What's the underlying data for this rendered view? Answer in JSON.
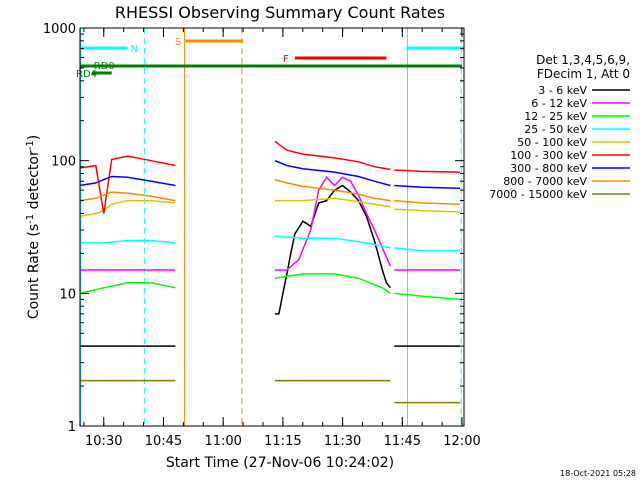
{
  "chart_data": {
    "type": "line",
    "title": "RHESSI Observing Summary Count Rates",
    "xlabel": "Start Time (27-Nov-06 10:24:02)",
    "ylabel_main": "Count Rate (s",
    "ylabel_sup1": "-1",
    "ylabel_mid": " detector",
    "ylabel_sup2": "-1",
    "ylabel_end": ")",
    "x_range_min": [
      24.03,
      120.5
    ],
    "y_scale": "log",
    "ylim": [
      1,
      1000
    ],
    "x_ticks": [
      {
        "min": 30,
        "label": "10:30"
      },
      {
        "min": 45,
        "label": "10:45"
      },
      {
        "min": 60,
        "label": "11:00"
      },
      {
        "min": 75,
        "label": "11:15"
      },
      {
        "min": 90,
        "label": "11:30"
      },
      {
        "min": 105,
        "label": "11:45"
      },
      {
        "min": 120,
        "label": "12:00"
      }
    ],
    "y_ticks": [
      {
        "value": 1,
        "label": "1"
      },
      {
        "value": 10,
        "label": "10"
      },
      {
        "value": 100,
        "label": "100"
      },
      {
        "value": 1000,
        "label": "1000"
      }
    ],
    "legend_title_lines": [
      "Det 1,3,4,5,6,9,",
      "FDecim 1, Att 0"
    ],
    "series": [
      {
        "name": "3 - 6 keV",
        "color": "#000000",
        "segments": [
          {
            "t": [
              24,
              30,
              36,
              42,
              48
            ],
            "v": [
              4,
              4,
              4,
              4,
              4
            ]
          },
          {
            "t": [
              73,
              74,
              75,
              76,
              77,
              78,
              80,
              82,
              84,
              86,
              88,
              90,
              92,
              94,
              96,
              98,
              100,
              101,
              102
            ],
            "v": [
              7,
              7,
              10,
              14,
              20,
              28,
              35,
              32,
              48,
              50,
              60,
              65,
              58,
              50,
              38,
              25,
              15,
              12,
              11
            ]
          },
          {
            "t": [
              103,
              108,
              114,
              119.5
            ],
            "v": [
              4,
              4,
              4,
              4
            ]
          }
        ]
      },
      {
        "name": "6 - 12 keV",
        "color": "#ff00ff",
        "segments": [
          {
            "t": [
              24,
              30,
              36,
              42,
              48
            ],
            "v": [
              15,
              15,
              15,
              15,
              15
            ]
          },
          {
            "t": [
              73,
              76,
              79,
              82,
              84,
              86,
              88,
              90,
              92,
              94,
              96,
              98,
              100,
              102
            ],
            "v": [
              15,
              15,
              18,
              30,
              60,
              75,
              65,
              75,
              70,
              55,
              40,
              30,
              22,
              16
            ]
          },
          {
            "t": [
              103,
              108,
              114,
              119.5
            ],
            "v": [
              15,
              15,
              15,
              15
            ]
          }
        ]
      },
      {
        "name": "12 - 25 keV",
        "color": "#00ff00",
        "segments": [
          {
            "t": [
              24,
              30,
              36,
              42,
              48
            ],
            "v": [
              10,
              11,
              12,
              12,
              11
            ]
          },
          {
            "t": [
              73,
              80,
              88,
              94,
              100,
              102
            ],
            "v": [
              13,
              14,
              14,
              13,
              11,
              10
            ]
          },
          {
            "t": [
              103,
              110,
              119.5
            ],
            "v": [
              10,
              9.5,
              9
            ]
          }
        ]
      },
      {
        "name": "25 - 50 keV",
        "color": "#00ffff",
        "segments": [
          {
            "t": [
              24,
              30,
              36,
              42,
              48
            ],
            "v": [
              24,
              24,
              25,
              25,
              24
            ]
          },
          {
            "t": [
              73,
              80,
              88,
              96,
              102
            ],
            "v": [
              27,
              26,
              26,
              24,
              22
            ]
          },
          {
            "t": [
              103,
              110,
              119.5
            ],
            "v": [
              22,
              21,
              21
            ]
          }
        ]
      },
      {
        "name": "50 - 100 keV",
        "color": "#cccc00",
        "segments": [
          {
            "t": [
              24,
              28,
              30,
              32,
              36,
              42,
              48
            ],
            "v": [
              38,
              40,
              42,
              47,
              50,
              50,
              48
            ]
          },
          {
            "t": [
              73,
              80,
              88,
              96,
              102
            ],
            "v": [
              50,
              50,
              52,
              48,
              45
            ]
          },
          {
            "t": [
              103,
              110,
              119.5
            ],
            "v": [
              43,
              42,
              41
            ]
          }
        ]
      },
      {
        "name": "100 - 300 keV",
        "color": "#ff0000",
        "segments": [
          {
            "t": [
              24,
              28,
              30,
              32,
              36,
              42,
              48
            ],
            "v": [
              88,
              92,
              40,
              102,
              108,
              100,
              92
            ]
          },
          {
            "t": [
              73,
              76,
              80,
              88,
              94,
              98,
              102
            ],
            "v": [
              140,
              120,
              112,
              105,
              98,
              90,
              86
            ]
          },
          {
            "t": [
              103,
              110,
              119.5
            ],
            "v": [
              85,
              83,
              82
            ]
          }
        ]
      },
      {
        "name": "300 - 800 keV",
        "color": "#0000ff",
        "segments": [
          {
            "t": [
              24,
              28,
              30,
              32,
              36,
              42,
              48
            ],
            "v": [
              65,
              68,
              72,
              76,
              75,
              70,
              65
            ]
          },
          {
            "t": [
              73,
              76,
              80,
              88,
              94,
              98,
              102
            ],
            "v": [
              100,
              92,
              87,
              82,
              76,
              70,
              65
            ]
          },
          {
            "t": [
              103,
              110,
              119.5
            ],
            "v": [
              65,
              63,
              62
            ]
          }
        ]
      },
      {
        "name": "800 - 7000 keV",
        "color": "#ff8800",
        "segments": [
          {
            "t": [
              24,
              28,
              30,
              32,
              36,
              42,
              48
            ],
            "v": [
              50,
              52,
              55,
              58,
              57,
              54,
              50
            ]
          },
          {
            "t": [
              73,
              76,
              80,
              88,
              94,
              98,
              102
            ],
            "v": [
              72,
              68,
              64,
              60,
              56,
              52,
              50
            ]
          },
          {
            "t": [
              103,
              110,
              119.5
            ],
            "v": [
              50,
              48,
              47
            ]
          }
        ]
      },
      {
        "name": "7000 - 15000 keV",
        "color": "#808000",
        "segments": [
          {
            "t": [
              24,
              30,
              36,
              42,
              48
            ],
            "v": [
              2.2,
              2.2,
              2.2,
              2.2,
              2.2
            ]
          },
          {
            "t": [
              73,
              80,
              88,
              96,
              102
            ],
            "v": [
              2.2,
              2.2,
              2.2,
              2.2,
              2.2
            ]
          },
          {
            "t": [
              103,
              110,
              119.5
            ],
            "v": [
              1.5,
              1.5,
              1.5
            ]
          }
        ]
      }
    ],
    "annotations": [
      {
        "label": "N",
        "color": "#00ffff",
        "t_start": 24,
        "t_end": 36
      },
      {
        "label": "S",
        "color": "#ff8800",
        "t_start": 50.5,
        "t_end": 65
      },
      {
        "label": "F",
        "color": "#ff0000",
        "t_start": 78,
        "t_end": 101
      },
      {
        "label": "RD0",
        "color": "#008000",
        "t_start": 24,
        "t_end": 120
      },
      {
        "label": "RD4",
        "color": "#008000",
        "t_start": 27,
        "t_end": 32
      }
    ],
    "n_right_t_start": 106,
    "markers": [
      {
        "t": 24.2,
        "color": "#00ffff",
        "style": "solid"
      },
      {
        "t": 40.2,
        "color": "#00ffff",
        "style": "dashed"
      },
      {
        "t": 50.3,
        "color": "#ff8800",
        "style": "solid"
      },
      {
        "t": 64.7,
        "color": "#ff8800",
        "style": "dashed"
      },
      {
        "t": 106.3,
        "color": "#00ffff",
        "style": "solid"
      },
      {
        "t": 119.8,
        "color": "#00ffff",
        "style": "dashed"
      }
    ]
  },
  "footer_timestamp": "18-Oct-2021 05:28"
}
